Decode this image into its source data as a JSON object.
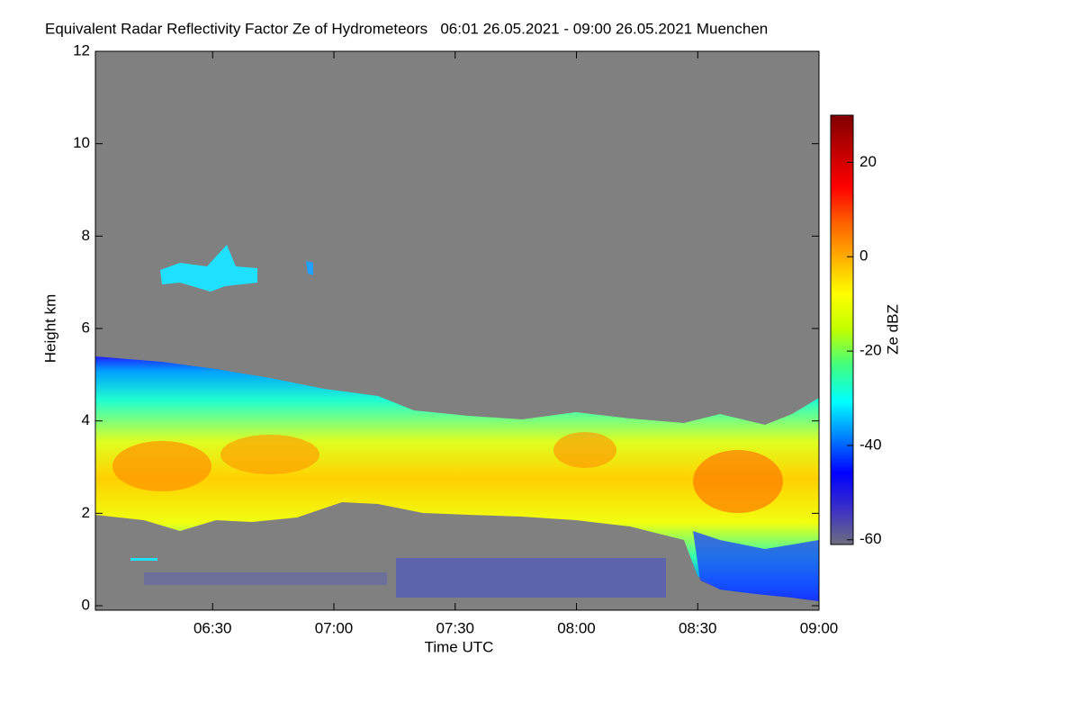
{
  "chart_data": {
    "type": "heatmap",
    "title": "Equivalent Radar Reflectivity Factor Ze of Hydrometeors   06:01 26.05.2021 - 09:00 26.05.2021 Muenchen",
    "xlabel": "Time UTC",
    "ylabel": "Height km",
    "colorbar_label": "Ze dBZ",
    "xlim": [
      "06:01",
      "09:00"
    ],
    "xticks": [
      "06:30",
      "07:00",
      "07:30",
      "08:00",
      "08:30",
      "09:00"
    ],
    "ylim": [
      0,
      12
    ],
    "yticks": [
      0,
      2,
      4,
      6,
      8,
      10,
      12
    ],
    "clim": [
      -61,
      30
    ],
    "cticks": [
      -60,
      -40,
      -20,
      0,
      20
    ],
    "colormap": [
      "#6e6e7e",
      "#3a2fc8",
      "#0000ff",
      "#0080ff",
      "#00ffff",
      "#40ff80",
      "#c0ff00",
      "#ffff00",
      "#ffb000",
      "#ff6000",
      "#ff0000",
      "#c00000",
      "#800000"
    ],
    "background": "#808080"
  }
}
